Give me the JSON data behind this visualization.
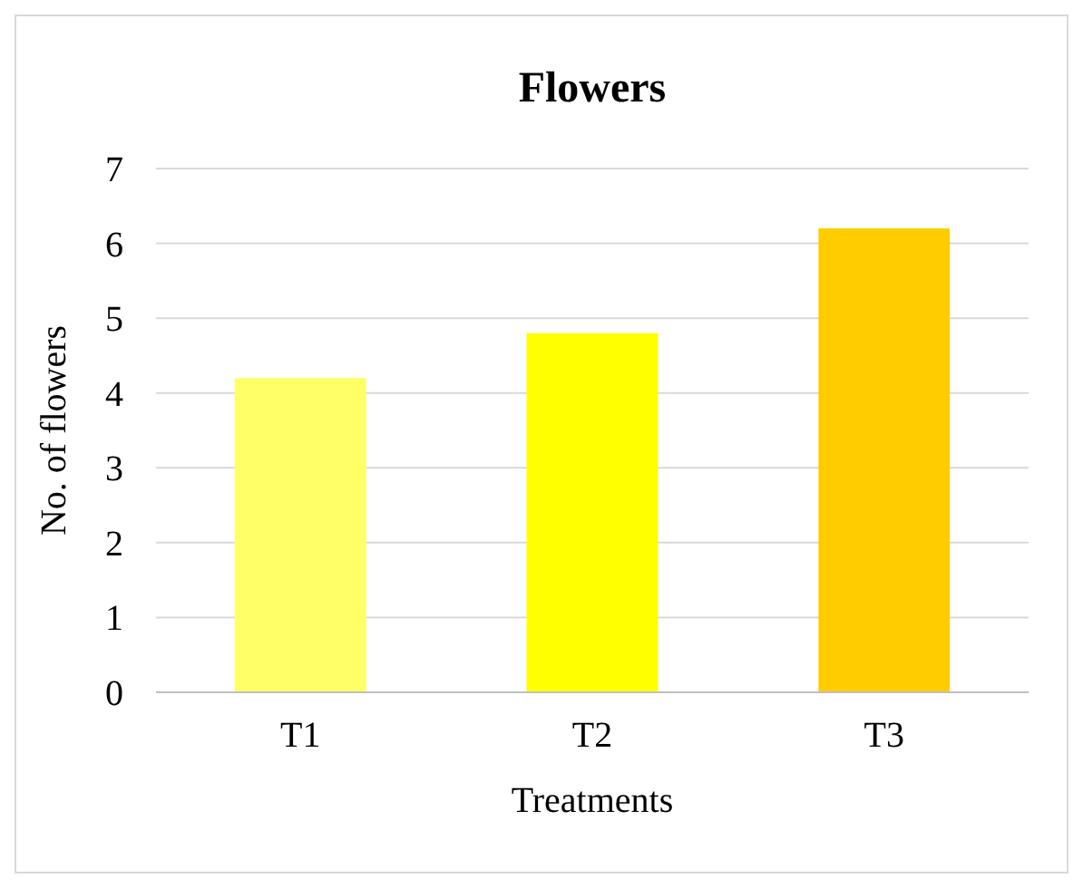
{
  "chart_data": {
    "type": "bar",
    "title": "Flowers",
    "xlabel": "Treatments",
    "ylabel": "No. of flowers",
    "categories": [
      "T1",
      "T2",
      "T3"
    ],
    "values": [
      4.2,
      4.8,
      6.2
    ],
    "colors": [
      "#ffff66",
      "#ffff00",
      "#ffcc00"
    ],
    "ylim": [
      0,
      7
    ],
    "yticks": [
      0,
      1,
      2,
      3,
      4,
      5,
      6,
      7
    ],
    "grid": "y"
  }
}
